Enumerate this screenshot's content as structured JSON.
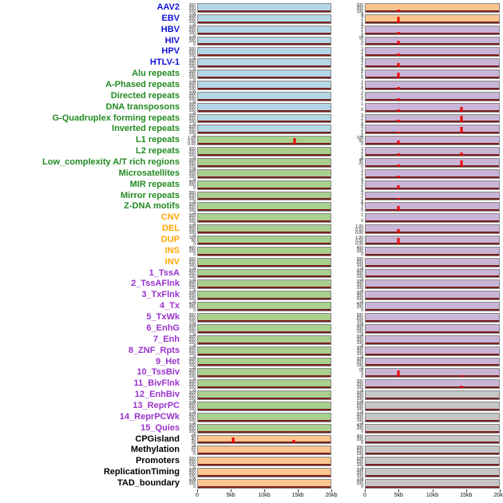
{
  "style": {
    "panel_colors": {
      "blue": "#b4d7e6",
      "green": "#a9d08e",
      "purple": "#c9b5d6",
      "orange": "#fdc58f",
      "gray": "#c6c6c6"
    },
    "label_colors": {
      "virus": "#1414dc",
      "repeat": "#228b22",
      "sv": "#ffa500",
      "chromhmm": "#9932cc",
      "other": "#000000"
    },
    "spike_color": "#ee0000",
    "baseline_color": "#7a1f1f",
    "panel_border_color": "#878787"
  },
  "chart_data": {
    "type": "area",
    "title": "",
    "description": "Two-column multi-track genomic feature density plot over a 0-20kb window; each row is a feature track with a baseline signal and red enrichment spikes.",
    "columns": 2,
    "x_axis": {
      "ticks": [
        "0",
        "5kb",
        "10kb",
        "15kb",
        "20kb"
      ],
      "range_kb": [
        0,
        20
      ]
    },
    "tick_presets": {
      "t300": [
        "300",
        "200",
        "100",
        "0"
      ],
      "t400": [
        "400",
        "200",
        "0"
      ],
      "t100": [
        "100",
        "50",
        "0"
      ],
      "t60": [
        "60",
        "40",
        "20",
        "0"
      ],
      "t40": [
        "40",
        "20",
        "0"
      ],
      "t20": [
        "20",
        "10",
        "0"
      ],
      "t10": [
        "10",
        "5",
        "0"
      ],
      "t4": [
        "4",
        "2",
        "0"
      ],
      "t3": [
        "3",
        "2",
        "1",
        "0"
      ],
      "t2": [
        "2",
        "1",
        "0"
      ],
      "t1": [
        "1",
        "0"
      ],
      "t1f": [
        "1.00",
        "0.50",
        "0.00"
      ]
    },
    "rows": [
      {
        "label": "AAV2",
        "group": "virus",
        "left": {
          "bg": "blue",
          "yticks": "t300",
          "spikes": []
        },
        "right": {
          "bg": "orange",
          "yticks": "t300",
          "spikes": [
            {
              "kb": 4.9,
              "h": 0.28
            }
          ]
        }
      },
      {
        "label": "EBV",
        "group": "virus",
        "left": {
          "bg": "blue",
          "yticks": "t300",
          "spikes": []
        },
        "right": {
          "bg": "orange",
          "yticks": "t3",
          "spikes": [
            {
              "kb": 4.9,
              "h": 0.82
            }
          ]
        }
      },
      {
        "label": "HBV",
        "group": "virus",
        "left": {
          "bg": "blue",
          "yticks": "t300",
          "spikes": []
        },
        "right": {
          "bg": "purple",
          "yticks": "t3",
          "spikes": [
            {
              "kb": 4.9,
              "h": 0.3
            }
          ]
        }
      },
      {
        "label": "HIV",
        "group": "virus",
        "left": {
          "bg": "blue",
          "yticks": "t400",
          "spikes": []
        },
        "right": {
          "bg": "purple",
          "yticks": "t10",
          "spikes": [
            {
              "kb": 4.9,
              "h": 0.55
            }
          ]
        }
      },
      {
        "label": "HPV",
        "group": "virus",
        "left": {
          "bg": "blue",
          "yticks": "t300",
          "spikes": []
        },
        "right": {
          "bg": "purple",
          "yticks": "t3",
          "spikes": [
            {
              "kb": 4.9,
              "h": 0.3
            }
          ]
        }
      },
      {
        "label": "HTLV-1",
        "group": "virus",
        "left": {
          "bg": "blue",
          "yticks": "t300",
          "spikes": []
        },
        "right": {
          "bg": "purple",
          "yticks": "t3",
          "spikes": [
            {
              "kb": 4.9,
              "h": 0.5
            }
          ]
        }
      },
      {
        "label": "Alu repeats",
        "group": "repeat",
        "left": {
          "bg": "blue",
          "yticks": "t300",
          "spikes": []
        },
        "right": {
          "bg": "purple",
          "yticks": "t2",
          "spikes": [
            {
              "kb": 4.9,
              "h": 0.72
            }
          ]
        }
      },
      {
        "label": "A-Phased repeats",
        "group": "repeat",
        "left": {
          "bg": "blue",
          "yticks": "t300",
          "spikes": []
        },
        "right": {
          "bg": "purple",
          "yticks": "t2",
          "spikes": [
            {
              "kb": 4.9,
              "h": 0.3
            }
          ]
        }
      },
      {
        "label": "Directed repeats",
        "group": "repeat",
        "left": {
          "bg": "blue",
          "yticks": "t300",
          "spikes": []
        },
        "right": {
          "bg": "purple",
          "yticks": "t2",
          "spikes": [
            {
              "kb": 4.9,
              "h": 0.32
            }
          ]
        }
      },
      {
        "label": "DNA transposons",
        "group": "repeat",
        "left": {
          "bg": "blue",
          "yticks": "t300",
          "spikes": []
        },
        "right": {
          "bg": "purple",
          "yticks": "t1",
          "spikes": [
            {
              "kb": 4.9,
              "h": 0.25
            },
            {
              "kb": 14.4,
              "h": 0.6
            }
          ]
        }
      },
      {
        "label": "G-Quadruplex forming repeats",
        "group": "repeat",
        "left": {
          "bg": "blue",
          "yticks": "t300",
          "spikes": []
        },
        "right": {
          "bg": "purple",
          "yticks": "t3",
          "spikes": [
            {
              "kb": 4.9,
              "h": 0.35
            },
            {
              "kb": 14.4,
              "h": 0.85
            }
          ]
        }
      },
      {
        "label": "Inverted repeats",
        "group": "repeat",
        "left": {
          "bg": "blue",
          "yticks": "t300",
          "spikes": []
        },
        "right": {
          "bg": "purple",
          "yticks": "t3",
          "spikes": [
            {
              "kb": 4.9,
              "h": 0.25
            },
            {
              "kb": 14.4,
              "h": 0.85
            }
          ]
        }
      },
      {
        "label": "L1 repeats",
        "group": "repeat",
        "left": {
          "bg": "green",
          "yticks": "t1f",
          "spikes": [
            {
              "kb": 14.6,
              "h": 0.85
            }
          ]
        },
        "right": {
          "bg": "purple",
          "yticks": "t100",
          "spikes": [
            {
              "kb": 4.9,
              "h": 0.55
            }
          ]
        }
      },
      {
        "label": "L2 repeats",
        "group": "repeat",
        "left": {
          "bg": "green",
          "yticks": "t300",
          "spikes": []
        },
        "right": {
          "bg": "purple",
          "yticks": "t3",
          "spikes": [
            {
              "kb": 4.9,
              "h": 0.3
            },
            {
              "kb": 14.4,
              "h": 0.45
            }
          ]
        }
      },
      {
        "label": "Low_complexity A/T rich regions",
        "group": "repeat",
        "left": {
          "bg": "green",
          "yticks": "t300",
          "spikes": []
        },
        "right": {
          "bg": "purple",
          "yticks": "t40",
          "spikes": [
            {
              "kb": 4.9,
              "h": 0.3
            },
            {
              "kb": 14.4,
              "h": 0.85
            }
          ]
        }
      },
      {
        "label": "Microsatellites",
        "group": "repeat",
        "left": {
          "bg": "green",
          "yticks": "t300",
          "spikes": []
        },
        "right": {
          "bg": "purple",
          "yticks": "t3",
          "spikes": [
            {
              "kb": 4.9,
              "h": 0.28
            }
          ]
        }
      },
      {
        "label": "MIR repeats",
        "group": "repeat",
        "left": {
          "bg": "green",
          "yticks": "t400",
          "spikes": []
        },
        "right": {
          "bg": "purple",
          "yticks": "t3",
          "spikes": [
            {
              "kb": 4.9,
              "h": 0.5
            }
          ]
        }
      },
      {
        "label": "Mirror repeats",
        "group": "repeat",
        "left": {
          "bg": "green",
          "yticks": "t300",
          "spikes": []
        },
        "right": {
          "bg": "purple",
          "yticks": "t3",
          "spikes": [
            {
              "kb": 4.9,
              "h": 0.3
            }
          ]
        }
      },
      {
        "label": "Z-DNA motifs",
        "group": "repeat",
        "left": {
          "bg": "green",
          "yticks": "t300",
          "spikes": []
        },
        "right": {
          "bg": "purple",
          "yticks": "t4",
          "spikes": [
            {
              "kb": 4.9,
              "h": 0.65
            }
          ]
        }
      },
      {
        "label": "CNV",
        "group": "sv",
        "left": {
          "bg": "green",
          "yticks": "t300",
          "spikes": []
        },
        "right": {
          "bg": "purple",
          "yticks": "t1",
          "spikes": []
        }
      },
      {
        "label": "DEL",
        "group": "sv",
        "left": {
          "bg": "green",
          "yticks": "t300",
          "spikes": []
        },
        "right": {
          "bg": "purple",
          "yticks": "t1f",
          "spikes": [
            {
              "kb": 4.9,
              "h": 0.55
            }
          ]
        }
      },
      {
        "label": "DUP",
        "group": "sv",
        "left": {
          "bg": "green",
          "yticks": "t100",
          "spikes": []
        },
        "right": {
          "bg": "purple",
          "yticks": "t1f",
          "spikes": [
            {
              "kb": 4.9,
              "h": 0.8
            }
          ]
        }
      },
      {
        "label": "INS",
        "group": "sv",
        "left": {
          "bg": "green",
          "yticks": "t400",
          "spikes": []
        },
        "right": {
          "bg": "purple",
          "yticks": "t400",
          "spikes": []
        }
      },
      {
        "label": "INV",
        "group": "sv",
        "left": {
          "bg": "green",
          "yticks": "t300",
          "spikes": []
        },
        "right": {
          "bg": "purple",
          "yticks": "t300",
          "spikes": []
        }
      },
      {
        "label": "1_TssA",
        "group": "chromhmm",
        "left": {
          "bg": "green",
          "yticks": "t300",
          "spikes": []
        },
        "right": {
          "bg": "purple",
          "yticks": "t300",
          "spikes": []
        }
      },
      {
        "label": "2_TssAFlnk",
        "group": "chromhmm",
        "left": {
          "bg": "green",
          "yticks": "t300",
          "spikes": []
        },
        "right": {
          "bg": "purple",
          "yticks": "t300",
          "spikes": []
        }
      },
      {
        "label": "3_TxFlnk",
        "group": "chromhmm",
        "left": {
          "bg": "green",
          "yticks": "t300",
          "spikes": []
        },
        "right": {
          "bg": "purple",
          "yticks": "t300",
          "spikes": []
        }
      },
      {
        "label": "4_Tx",
        "group": "chromhmm",
        "left": {
          "bg": "green",
          "yticks": "t400",
          "spikes": []
        },
        "right": {
          "bg": "purple",
          "yticks": "t400",
          "spikes": []
        }
      },
      {
        "label": "5_TxWk",
        "group": "chromhmm",
        "left": {
          "bg": "green",
          "yticks": "t300",
          "spikes": []
        },
        "right": {
          "bg": "purple",
          "yticks": "t300",
          "spikes": []
        }
      },
      {
        "label": "6_EnhG",
        "group": "chromhmm",
        "left": {
          "bg": "green",
          "yticks": "t300",
          "spikes": []
        },
        "right": {
          "bg": "purple",
          "yticks": "t300",
          "spikes": []
        }
      },
      {
        "label": "7_Enh",
        "group": "chromhmm",
        "left": {
          "bg": "green",
          "yticks": "t300",
          "spikes": []
        },
        "right": {
          "bg": "purple",
          "yticks": "t300",
          "spikes": []
        }
      },
      {
        "label": "8_ZNF_Rpts",
        "group": "chromhmm",
        "left": {
          "bg": "green",
          "yticks": "t300",
          "spikes": []
        },
        "right": {
          "bg": "purple",
          "yticks": "t300",
          "spikes": []
        }
      },
      {
        "label": "9_Het",
        "group": "chromhmm",
        "left": {
          "bg": "green",
          "yticks": "t300",
          "spikes": []
        },
        "right": {
          "bg": "purple",
          "yticks": "t300",
          "spikes": []
        }
      },
      {
        "label": "10_TssBiv",
        "group": "chromhmm",
        "left": {
          "bg": "green",
          "yticks": "t300",
          "spikes": []
        },
        "right": {
          "bg": "purple",
          "yticks": "t10",
          "spikes": [
            {
              "kb": 4.9,
              "h": 0.8
            },
            {
              "kb": 14.4,
              "h": 0.22
            }
          ]
        }
      },
      {
        "label": "11_BivFlnk",
        "group": "chromhmm",
        "left": {
          "bg": "green",
          "yticks": "t300",
          "spikes": []
        },
        "right": {
          "bg": "purple",
          "yticks": "t300",
          "spikes": [
            {
              "kb": 14.4,
              "h": 0.28
            }
          ]
        }
      },
      {
        "label": "12_EnhBiv",
        "group": "chromhmm",
        "left": {
          "bg": "green",
          "yticks": "t300",
          "spikes": []
        },
        "right": {
          "bg": "gray",
          "yticks": "t300",
          "spikes": []
        }
      },
      {
        "label": "13_ReprPC",
        "group": "chromhmm",
        "left": {
          "bg": "green",
          "yticks": "t300",
          "spikes": []
        },
        "right": {
          "bg": "gray",
          "yticks": "t300",
          "spikes": []
        }
      },
      {
        "label": "14_ReprPCWk",
        "group": "chromhmm",
        "left": {
          "bg": "green",
          "yticks": "t300",
          "spikes": []
        },
        "right": {
          "bg": "gray",
          "yticks": "t300",
          "spikes": []
        }
      },
      {
        "label": "15_Quies",
        "group": "chromhmm",
        "left": {
          "bg": "green",
          "yticks": "t300",
          "spikes": []
        },
        "right": {
          "bg": "gray",
          "yticks": "t400",
          "spikes": []
        }
      },
      {
        "label": "CPGisland",
        "group": "other",
        "left": {
          "bg": "orange",
          "yticks": "t60",
          "spikes": [
            {
              "kb": 5.3,
              "h": 0.8
            },
            {
              "kb": 14.4,
              "h": 0.45
            }
          ]
        },
        "right": {
          "bg": "gray",
          "yticks": "t400",
          "spikes": []
        }
      },
      {
        "label": "Methylation",
        "group": "other",
        "left": {
          "bg": "orange",
          "yticks": "t20",
          "spikes": []
        },
        "right": {
          "bg": "gray",
          "yticks": "t300",
          "spikes": []
        }
      },
      {
        "label": "Promoters",
        "group": "other",
        "left": {
          "bg": "orange",
          "yticks": "t300",
          "spikes": []
        },
        "right": {
          "bg": "gray",
          "yticks": "t300",
          "spikes": []
        }
      },
      {
        "label": "ReplicationTiming",
        "group": "other",
        "left": {
          "bg": "orange",
          "yticks": "t300",
          "spikes": []
        },
        "right": {
          "bg": "gray",
          "yticks": "t300",
          "spikes": []
        }
      },
      {
        "label": "TAD_boundary",
        "group": "other",
        "left": {
          "bg": "orange",
          "yticks": "t400",
          "spikes": []
        },
        "right": {
          "bg": "gray",
          "yticks": "t400",
          "spikes": []
        }
      }
    ]
  }
}
